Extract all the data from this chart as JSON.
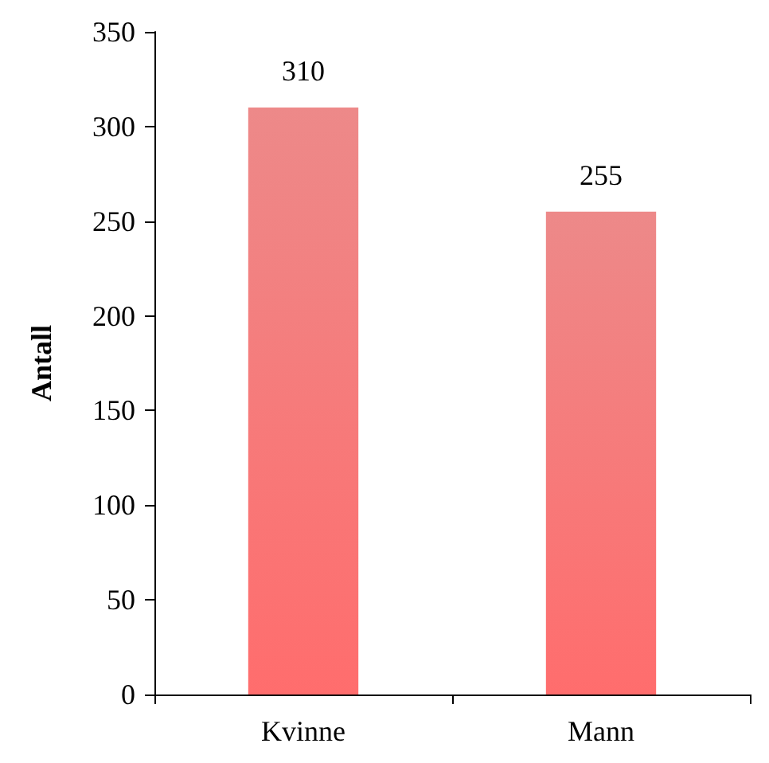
{
  "chart_data": {
    "type": "bar",
    "ylabel": "Antall",
    "categories": [
      "Kvinne",
      "Mann"
    ],
    "values": [
      310,
      255
    ],
    "color": "#e86262",
    "ylim": [
      0,
      350
    ],
    "yticks": [
      0,
      50,
      100,
      150,
      200,
      250,
      300,
      350
    ],
    "grid": false,
    "data_labels": true
  }
}
